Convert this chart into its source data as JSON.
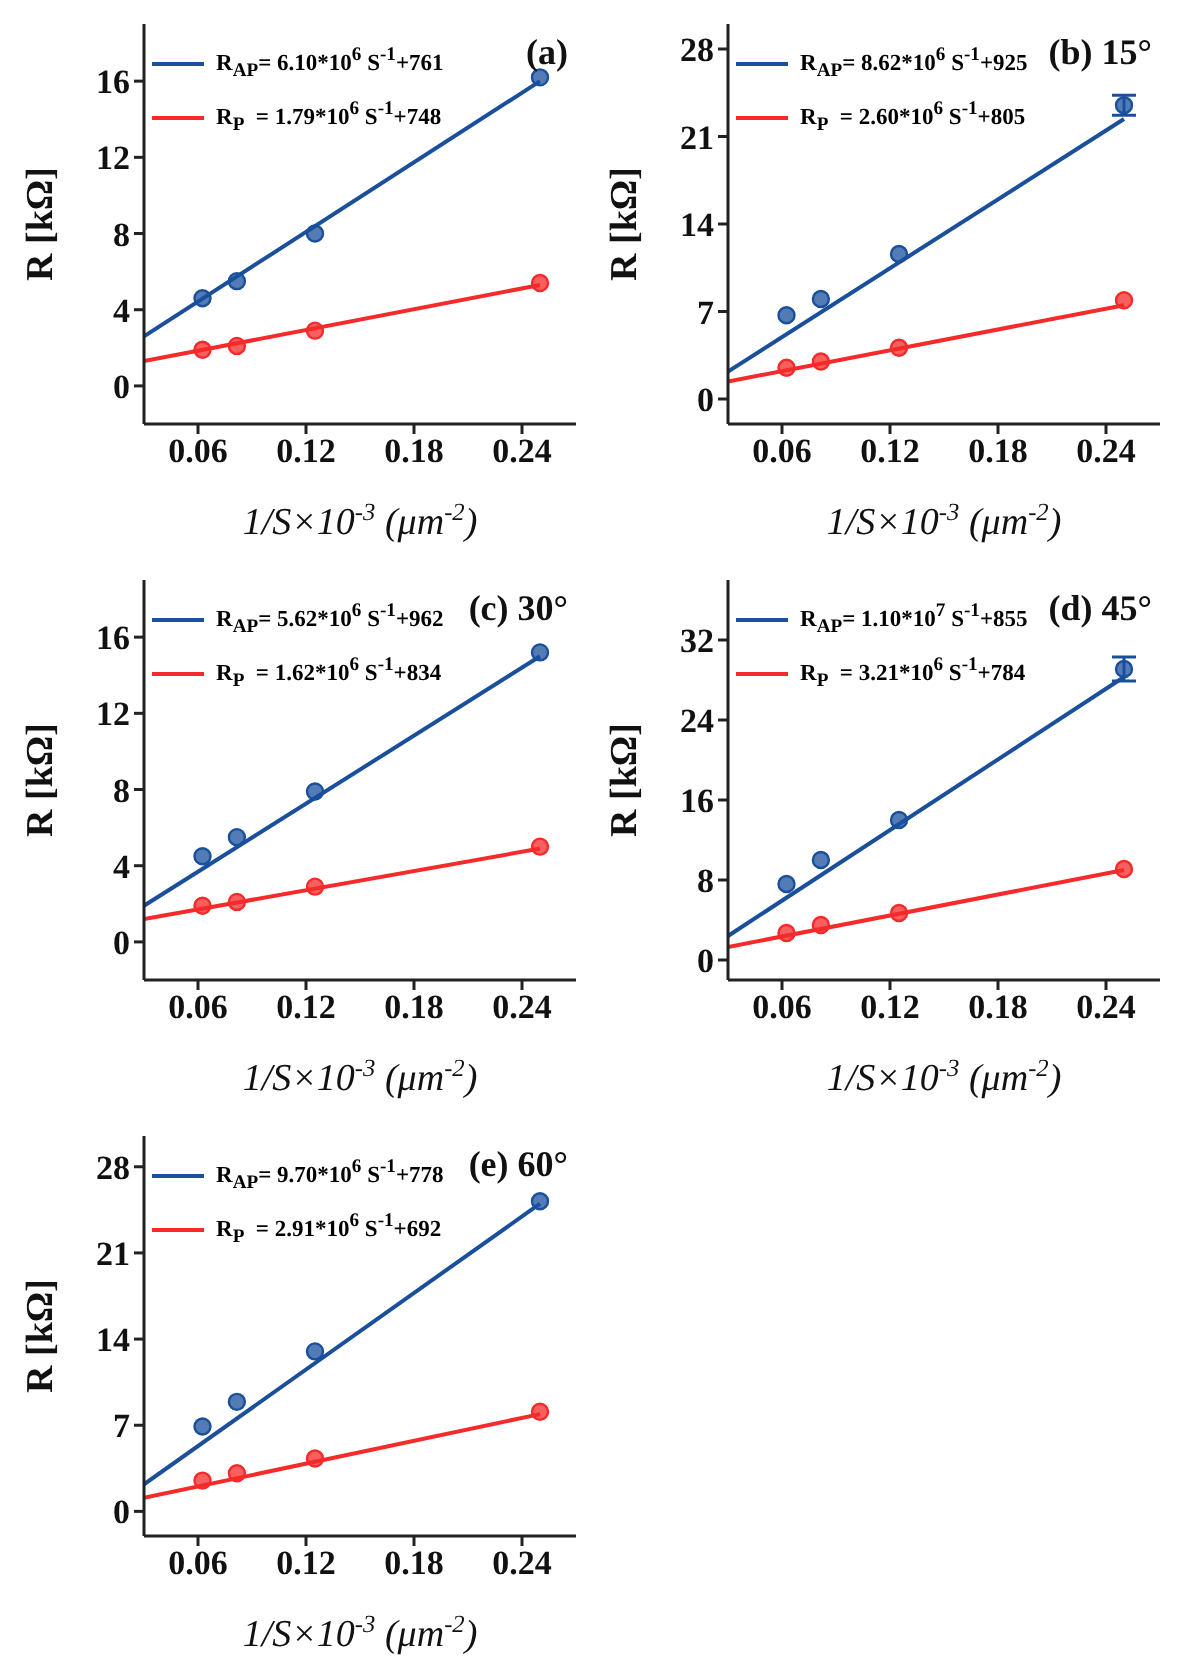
{
  "chart_data": [
    {
      "type": "scatter",
      "title": "(a)",
      "xlabel": "1/S×10$^{-3}$ (μm$^{-2}$)",
      "ylabel": "R [kΩ]",
      "xlim": [
        0.03,
        0.27
      ],
      "xticks": [
        0.06,
        0.12,
        0.18,
        0.24
      ],
      "ylim": [
        -2,
        19
      ],
      "yticks": [
        0,
        4,
        8,
        12,
        16
      ],
      "grid": false,
      "legend": "top left",
      "series": [
        {
          "name": "R$_{AP}$= 6.10*10$^{6}$ S$^{-1}$+761",
          "type": "line",
          "color": "#1a4f9c",
          "x": [
            0.03,
            0.25
          ],
          "values": [
            2.6,
            16.0
          ]
        },
        {
          "name": "R$_{P}$  = 1.79*10$^{6}$ S$^{-1}$+748",
          "type": "line",
          "color": "#f52a2a",
          "x": [
            0.03,
            0.25
          ],
          "values": [
            1.3,
            5.3
          ]
        },
        {
          "marker": "circle",
          "color": "#1a4f9c",
          "x": [
            0.0625,
            0.0816,
            0.125,
            0.25
          ],
          "values": [
            4.6,
            5.5,
            8.0,
            16.2
          ]
        },
        {
          "marker": "circle",
          "color": "#f52a2a",
          "x": [
            0.0625,
            0.0816,
            0.125,
            0.25
          ],
          "values": [
            1.9,
            2.1,
            2.9,
            5.4
          ]
        }
      ]
    },
    {
      "type": "scatter",
      "title": "(b) 15°",
      "xlabel": "1/S×10$^{-3}$ (μm$^{-2}$)",
      "ylabel": "R [kΩ]",
      "xlim": [
        0.03,
        0.27
      ],
      "xticks": [
        0.06,
        0.12,
        0.18,
        0.24
      ],
      "ylim": [
        -2,
        30
      ],
      "yticks": [
        0,
        7,
        14,
        21,
        28
      ],
      "grid": false,
      "legend": "top left",
      "series": [
        {
          "name": "R$_{AP}$= 8.62*10$^{6}$ S$^{-1}$+925",
          "type": "line",
          "color": "#1a4f9c",
          "x": [
            0.03,
            0.25
          ],
          "values": [
            2.2,
            22.4
          ]
        },
        {
          "name": "R$_{P}$  = 2.60*10$^{6}$ S$^{-1}$+805",
          "type": "line",
          "color": "#f52a2a",
          "x": [
            0.03,
            0.25
          ],
          "values": [
            1.4,
            7.5
          ]
        },
        {
          "marker": "circle",
          "color": "#1a4f9c",
          "x": [
            0.0625,
            0.0816,
            0.125,
            0.25
          ],
          "values": [
            6.7,
            8.0,
            11.6,
            23.5
          ],
          "errors": [
            null,
            null,
            null,
            0.8
          ]
        },
        {
          "marker": "circle",
          "color": "#f52a2a",
          "x": [
            0.0625,
            0.0816,
            0.125,
            0.25
          ],
          "values": [
            2.5,
            3.0,
            4.1,
            7.9
          ]
        }
      ]
    },
    {
      "type": "scatter",
      "title": "(c) 30°",
      "xlabel": "1/S×10$^{-3}$ (μm$^{-2}$)",
      "ylabel": "R [kΩ]",
      "xlim": [
        0.03,
        0.27
      ],
      "xticks": [
        0.06,
        0.12,
        0.18,
        0.24
      ],
      "ylim": [
        -2,
        19
      ],
      "yticks": [
        0,
        4,
        8,
        12,
        16
      ],
      "grid": false,
      "legend": "top left",
      "series": [
        {
          "name": "R$_{AP}$= 5.62*10$^{6}$ S$^{-1}$+962",
          "type": "line",
          "color": "#1a4f9c",
          "x": [
            0.03,
            0.25
          ],
          "values": [
            1.9,
            15.0
          ]
        },
        {
          "name": "R$_{P}$  = 1.62*10$^{6}$ S$^{-1}$+834",
          "type": "line",
          "color": "#f52a2a",
          "x": [
            0.03,
            0.25
          ],
          "values": [
            1.2,
            4.9
          ]
        },
        {
          "marker": "circle",
          "color": "#1a4f9c",
          "x": [
            0.0625,
            0.0816,
            0.125,
            0.25
          ],
          "values": [
            4.5,
            5.5,
            7.9,
            15.2
          ]
        },
        {
          "marker": "circle",
          "color": "#f52a2a",
          "x": [
            0.0625,
            0.0816,
            0.125,
            0.25
          ],
          "values": [
            1.9,
            2.1,
            2.9,
            5.0
          ]
        }
      ]
    },
    {
      "type": "scatter",
      "title": "(d) 45°",
      "xlabel": "1/S×10$^{-3}$ (μm$^{-2}$)",
      "ylabel": "R [kΩ]",
      "xlim": [
        0.03,
        0.27
      ],
      "xticks": [
        0.06,
        0.12,
        0.18,
        0.24
      ],
      "ylim": [
        -2,
        38
      ],
      "yticks": [
        0,
        8,
        16,
        24,
        32
      ],
      "grid": false,
      "legend": "top left",
      "series": [
        {
          "name": "R$_{AP}$= 1.10*10$^{7}$ S$^{-1}$+855",
          "type": "line",
          "color": "#1a4f9c",
          "x": [
            0.03,
            0.25
          ],
          "values": [
            2.4,
            28.3
          ]
        },
        {
          "name": "R$_{P}$  = 3.21*10$^{6}$ S$^{-1}$+784",
          "type": "line",
          "color": "#f52a2a",
          "x": [
            0.03,
            0.25
          ],
          "values": [
            1.3,
            9.0
          ]
        },
        {
          "marker": "circle",
          "color": "#1a4f9c",
          "x": [
            0.0625,
            0.0816,
            0.125,
            0.25
          ],
          "values": [
            7.6,
            10.0,
            14.0,
            29.1
          ],
          "errors": [
            null,
            null,
            null,
            1.2
          ]
        },
        {
          "marker": "circle",
          "color": "#f52a2a",
          "x": [
            0.0625,
            0.0816,
            0.125,
            0.25
          ],
          "values": [
            2.7,
            3.5,
            4.7,
            9.1
          ]
        }
      ]
    },
    {
      "type": "scatter",
      "title": "(e) 60°",
      "xlabel": "1/S×10$^{-3}$ (μm$^{-2}$)",
      "ylabel": "R [kΩ]",
      "xlim": [
        0.03,
        0.27
      ],
      "xticks": [
        0.06,
        0.12,
        0.18,
        0.24
      ],
      "ylim": [
        -2,
        30.5
      ],
      "yticks": [
        0,
        7,
        14,
        21,
        28
      ],
      "grid": false,
      "legend": "top left",
      "series": [
        {
          "name": "R$_{AP}$= 9.70*10$^{6}$ S$^{-1}$+778",
          "type": "line",
          "color": "#1a4f9c",
          "x": [
            0.03,
            0.25
          ],
          "values": [
            2.2,
            25.0
          ]
        },
        {
          "name": "R$_{P}$  = 2.91*10$^{6}$ S$^{-1}$+692",
          "type": "line",
          "color": "#f52a2a",
          "x": [
            0.03,
            0.25
          ],
          "values": [
            1.1,
            7.9
          ]
        },
        {
          "marker": "circle",
          "color": "#1a4f9c",
          "x": [
            0.0625,
            0.0816,
            0.125,
            0.25
          ],
          "values": [
            6.9,
            8.9,
            13.0,
            25.2
          ]
        },
        {
          "marker": "circle",
          "color": "#f52a2a",
          "x": [
            0.0625,
            0.0816,
            0.125,
            0.25
          ],
          "values": [
            2.5,
            3.1,
            4.3,
            8.1
          ]
        }
      ]
    }
  ]
}
